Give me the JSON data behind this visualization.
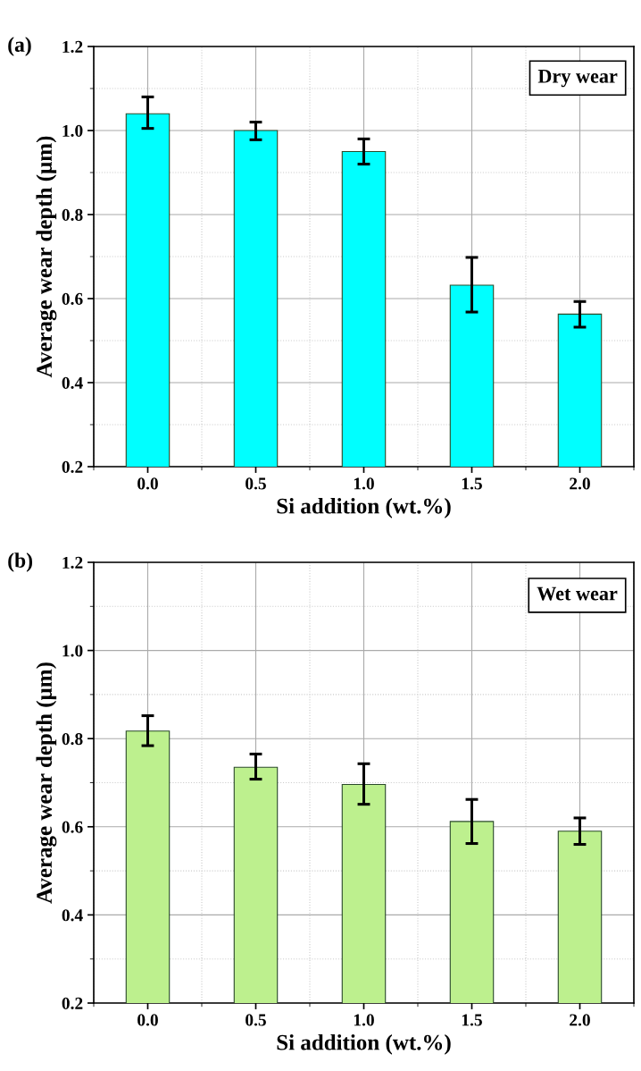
{
  "chart_data": [
    {
      "type": "bar",
      "title": "(a)",
      "xlabel": "Si addition (wt.%)",
      "ylabel": "Average wear depth (μm)",
      "annotations": [
        "Dry wear"
      ],
      "categories": [
        "0.0",
        "0.5",
        "1.0",
        "1.5",
        "2.0"
      ],
      "values": [
        1.04,
        1.0,
        0.95,
        0.632,
        0.563
      ],
      "color": "#00ffff",
      "errors": [
        [
          1.005,
          1.08
        ],
        [
          0.978,
          1.02
        ],
        [
          0.92,
          0.98
        ],
        [
          0.568,
          0.698
        ],
        [
          0.532,
          0.593
        ]
      ],
      "ylim": [
        0.2,
        1.2
      ],
      "yticks": [
        0.2,
        0.4,
        0.6,
        0.8,
        {
          "value": 1,
          "label": "1.0"
        },
        1.2
      ],
      "grid": true
    },
    {
      "type": "bar",
      "title": "(b)",
      "xlabel": "Si addition (wt.%)",
      "ylabel": "Average wear depth (μm)",
      "annotations": [
        "Wet wear"
      ],
      "categories": [
        "0.0",
        "0.5",
        "1.0",
        "1.5",
        "2.0"
      ],
      "values": [
        0.817,
        0.735,
        0.696,
        0.612,
        0.59
      ],
      "color": "#bdf08e",
      "errors": [
        [
          0.784,
          0.852
        ],
        [
          0.708,
          0.765
        ],
        [
          0.651,
          0.743
        ],
        [
          0.562,
          0.662
        ],
        [
          0.56,
          0.62
        ]
      ],
      "ylim": [
        0.2,
        1.2
      ],
      "yticks": [
        0.2,
        0.4,
        0.6,
        0.8,
        {
          "value": 1,
          "label": "1.0"
        },
        1.2
      ],
      "grid": true
    }
  ]
}
